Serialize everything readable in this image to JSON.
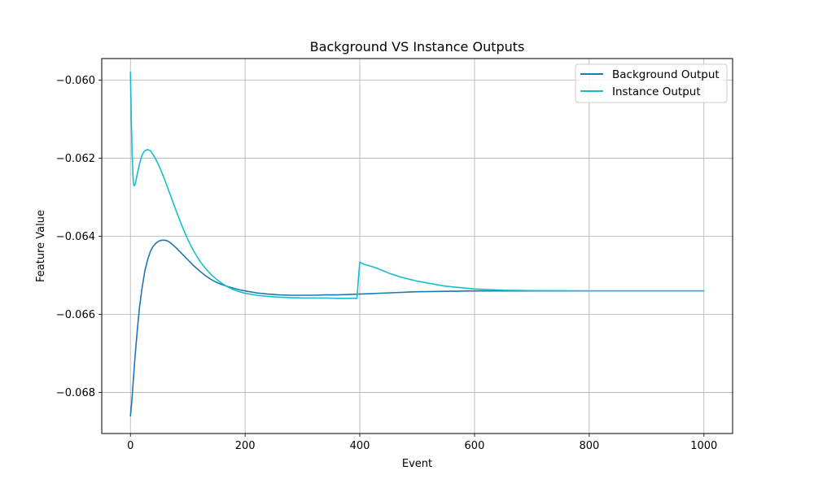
{
  "chart_data": {
    "type": "line",
    "title": "Background VS Instance Outputs",
    "xlabel": "Event",
    "ylabel": "Feature Value",
    "xlim": [
      -50,
      1050
    ],
    "ylim": [
      -0.06905,
      -0.05945
    ],
    "xticks": [
      0,
      200,
      400,
      600,
      800,
      1000
    ],
    "xtick_labels": [
      "0",
      "200",
      "400",
      "600",
      "800",
      "1000"
    ],
    "yticks": [
      -0.068,
      -0.066,
      -0.064,
      -0.062,
      -0.06
    ],
    "ytick_labels": [
      "−0.068",
      "−0.066",
      "−0.064",
      "−0.062",
      "−0.060"
    ],
    "grid": true,
    "legend_position": "top-right",
    "series": [
      {
        "name": "Background Output",
        "color": "#1f77b4",
        "x": [
          0,
          2,
          5,
          8,
          12,
          16,
          20,
          25,
          30,
          35,
          40,
          45,
          50,
          55,
          60,
          65,
          70,
          80,
          90,
          100,
          110,
          120,
          130,
          140,
          150,
          160,
          170,
          180,
          190,
          200,
          220,
          240,
          260,
          280,
          300,
          320,
          340,
          360,
          380,
          400,
          450,
          500,
          550,
          600,
          650,
          700,
          750,
          800,
          850,
          900,
          950,
          1000
        ],
        "y": [
          -0.0686,
          -0.0683,
          -0.0677,
          -0.0671,
          -0.0664,
          -0.0658,
          -0.06535,
          -0.0649,
          -0.0646,
          -0.06438,
          -0.06425,
          -0.06417,
          -0.06412,
          -0.0641,
          -0.0641,
          -0.06412,
          -0.06417,
          -0.0643,
          -0.06445,
          -0.0646,
          -0.06475,
          -0.06488,
          -0.065,
          -0.0651,
          -0.06518,
          -0.06524,
          -0.06529,
          -0.06533,
          -0.06537,
          -0.0654,
          -0.06545,
          -0.06548,
          -0.0655,
          -0.06551,
          -0.06551,
          -0.06551,
          -0.0655,
          -0.0655,
          -0.06549,
          -0.06548,
          -0.06545,
          -0.06542,
          -0.06541,
          -0.0654,
          -0.0654,
          -0.0654,
          -0.0654,
          -0.0654,
          -0.0654,
          -0.0654,
          -0.0654,
          -0.0654
        ]
      },
      {
        "name": "Instance Output",
        "color": "#17becf",
        "x": [
          0,
          1,
          2,
          3,
          4,
          5,
          6,
          7,
          8,
          9,
          10,
          12,
          15,
          18,
          21,
          25,
          30,
          35,
          40,
          45,
          50,
          55,
          60,
          70,
          80,
          90,
          100,
          110,
          120,
          130,
          140,
          150,
          160,
          170,
          180,
          190,
          200,
          220,
          240,
          260,
          280,
          300,
          320,
          340,
          360,
          380,
          395,
          398,
          400,
          402,
          405,
          410,
          420,
          430,
          440,
          450,
          470,
          500,
          550,
          600,
          650,
          700,
          800,
          900,
          1000
        ],
        "y": [
          -0.0598,
          -0.0606,
          -0.0613,
          -0.0619,
          -0.0623,
          -0.0626,
          -0.0627,
          -0.0627,
          -0.06268,
          -0.06262,
          -0.06255,
          -0.0624,
          -0.0622,
          -0.06203,
          -0.0619,
          -0.06181,
          -0.06178,
          -0.06181,
          -0.06192,
          -0.06205,
          -0.0622,
          -0.06238,
          -0.06256,
          -0.06296,
          -0.06336,
          -0.06374,
          -0.06408,
          -0.06437,
          -0.06461,
          -0.06481,
          -0.06497,
          -0.0651,
          -0.06521,
          -0.0653,
          -0.06537,
          -0.06542,
          -0.06546,
          -0.06551,
          -0.06554,
          -0.06556,
          -0.06557,
          -0.06558,
          -0.06558,
          -0.06558,
          -0.06559,
          -0.06559,
          -0.06559,
          -0.065,
          -0.06466,
          -0.06468,
          -0.0647,
          -0.06473,
          -0.06477,
          -0.06482,
          -0.06488,
          -0.06494,
          -0.06504,
          -0.06515,
          -0.06528,
          -0.06535,
          -0.06538,
          -0.06539,
          -0.0654,
          -0.0654,
          -0.0654
        ]
      }
    ]
  }
}
